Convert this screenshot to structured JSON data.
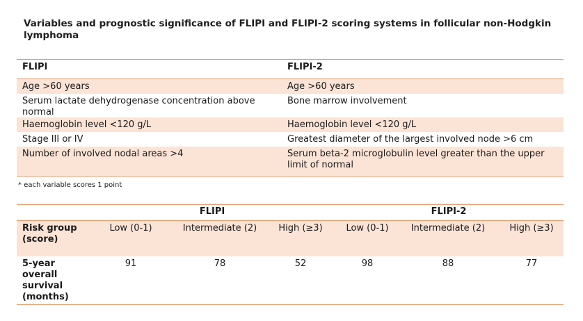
{
  "title": "Variables and prognostic significance of FLIPI and FLIPI-2 scoring systems in follicular non-Hodgkin lymphoma",
  "variables_table": {
    "headers": [
      "FLIPI",
      "FLIPI-2"
    ],
    "rows": [
      [
        "Age >60 years",
        "Age >60 years"
      ],
      [
        "Serum lactate dehydrogenase concentration above normal",
        "Bone marrow involvement"
      ],
      [
        "Haemoglobin level <120 g/L",
        "Haemoglobin level <120 g/L"
      ],
      [
        "Stage III or IV",
        "Greatest diameter of the largest involved node >6 cm"
      ],
      [
        "Number of involved nodal areas >4",
        "Serum beta-2 microglobulin level greater than the upper limit of normal"
      ]
    ]
  },
  "footnote": "* each variable scores 1 point",
  "survival_table": {
    "group_headers": [
      "FLIPI",
      "FLIPI-2"
    ],
    "risk_label": "Risk group (score)",
    "risk_groups": [
      "Low (0-1)",
      "Intermediate (2)",
      "High (≥3)",
      "Low (0-1)",
      "Intermediate (2)",
      "High (≥3)"
    ],
    "survival_label": "5-year overall survival (months)",
    "survival_values": [
      "91",
      "78",
      "52",
      "98",
      "88",
      "77"
    ]
  },
  "colors": {
    "rule": "#e59a6a",
    "band": "#fbe3d6"
  }
}
